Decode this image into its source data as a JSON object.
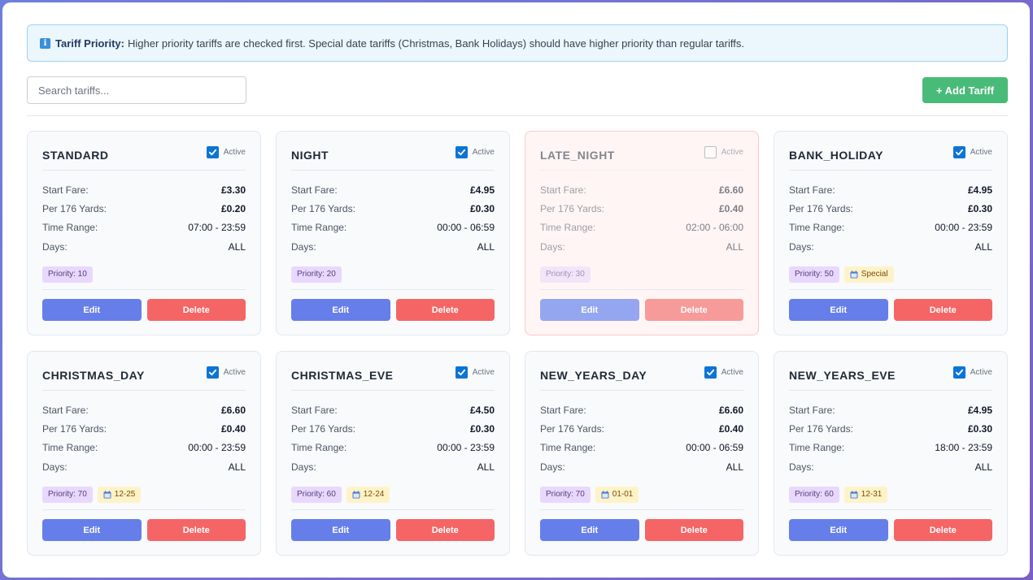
{
  "info": {
    "title": "Tariff Priority:",
    "text": "Higher priority tariffs are checked first. Special date tariffs (Christmas, Bank Holidays) should have higher priority than regular tariffs."
  },
  "search": {
    "placeholder": "Search tariffs..."
  },
  "add_button": "+ Add Tariff",
  "labels": {
    "active": "Active",
    "start_fare": "Start Fare:",
    "per_yards": "Per 176 Yards:",
    "time_range": "Time Range:",
    "days": "Days:",
    "edit": "Edit",
    "delete": "Delete"
  },
  "colors": {
    "accent": "#667eea",
    "danger": "#f56565",
    "success": "#48bb78",
    "priority_bg": "#e9d8fd",
    "special_bg": "#fef3c7"
  },
  "tariffs": [
    {
      "name": "STANDARD",
      "active": true,
      "start_fare": "£3.30",
      "per_yards": "£0.20",
      "time_range": "07:00 - 23:59",
      "days": "ALL",
      "priority": "Priority: 10",
      "special": ""
    },
    {
      "name": "NIGHT",
      "active": true,
      "start_fare": "£4.95",
      "per_yards": "£0.30",
      "time_range": "00:00 - 06:59",
      "days": "ALL",
      "priority": "Priority: 20",
      "special": ""
    },
    {
      "name": "LATE_NIGHT",
      "active": false,
      "start_fare": "£6.60",
      "per_yards": "£0.40",
      "time_range": "02:00 - 06:00",
      "days": "ALL",
      "priority": "Priority: 30",
      "special": ""
    },
    {
      "name": "BANK_HOLIDAY",
      "active": true,
      "start_fare": "£4.95",
      "per_yards": "£0.30",
      "time_range": "00:00 - 23:59",
      "days": "ALL",
      "priority": "Priority: 50",
      "special": "Special"
    },
    {
      "name": "CHRISTMAS_DAY",
      "active": true,
      "start_fare": "£6.60",
      "per_yards": "£0.40",
      "time_range": "00:00 - 23:59",
      "days": "ALL",
      "priority": "Priority: 70",
      "special": "12-25"
    },
    {
      "name": "CHRISTMAS_EVE",
      "active": true,
      "start_fare": "£4.50",
      "per_yards": "£0.30",
      "time_range": "00:00 - 23:59",
      "days": "ALL",
      "priority": "Priority: 60",
      "special": "12-24"
    },
    {
      "name": "NEW_YEARS_DAY",
      "active": true,
      "start_fare": "£6.60",
      "per_yards": "£0.40",
      "time_range": "00:00 - 06:59",
      "days": "ALL",
      "priority": "Priority: 70",
      "special": "01-01"
    },
    {
      "name": "NEW_YEARS_EVE",
      "active": true,
      "start_fare": "£4.95",
      "per_yards": "£0.30",
      "time_range": "18:00 - 23:59",
      "days": "ALL",
      "priority": "Priority: 60",
      "special": "12-31"
    }
  ]
}
